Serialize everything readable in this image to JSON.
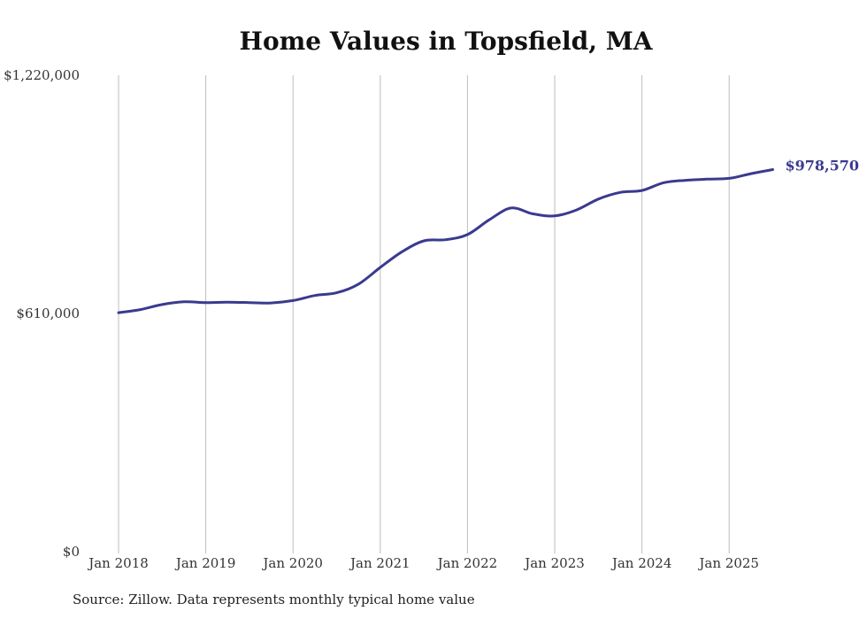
{
  "chart_data": {
    "type": "line",
    "title": "Home Values in Topsfield, MA",
    "source": "Source: Zillow. Data represents monthly typical home value",
    "end_label": "$978,570",
    "color": "#3a3a8f",
    "grid": true,
    "ylim": [
      0,
      1220000
    ],
    "y_ticks": [
      {
        "value": 0,
        "label": "$0"
      },
      {
        "value": 610000,
        "label": "$610,000"
      },
      {
        "value": 1220000,
        "label": "$1,220,000"
      }
    ],
    "x_ticks": [
      {
        "value": "2018-01",
        "label": "Jan 2018"
      },
      {
        "value": "2019-01",
        "label": "Jan 2019"
      },
      {
        "value": "2020-01",
        "label": "Jan 2020"
      },
      {
        "value": "2021-01",
        "label": "Jan 2021"
      },
      {
        "value": "2022-01",
        "label": "Jan 2022"
      },
      {
        "value": "2023-01",
        "label": "Jan 2023"
      },
      {
        "value": "2024-01",
        "label": "Jan 2024"
      },
      {
        "value": "2025-01",
        "label": "Jan 2025"
      }
    ],
    "series": [
      {
        "values": [
          [
            "2018-01",
            612000
          ],
          [
            "2018-04",
            620000
          ],
          [
            "2018-07",
            633000
          ],
          [
            "2018-10",
            640000
          ],
          [
            "2019-01",
            638000
          ],
          [
            "2019-04",
            639000
          ],
          [
            "2019-07",
            638000
          ],
          [
            "2019-10",
            637000
          ],
          [
            "2020-01",
            643000
          ],
          [
            "2020-04",
            656000
          ],
          [
            "2020-07",
            663000
          ],
          [
            "2020-10",
            685000
          ],
          [
            "2021-01",
            728000
          ],
          [
            "2021-04",
            768000
          ],
          [
            "2021-07",
            796000
          ],
          [
            "2021-10",
            799000
          ],
          [
            "2022-01",
            812000
          ],
          [
            "2022-04",
            850000
          ],
          [
            "2022-07",
            880000
          ],
          [
            "2022-10",
            865000
          ],
          [
            "2023-01",
            860000
          ],
          [
            "2023-04",
            875000
          ],
          [
            "2023-07",
            903000
          ],
          [
            "2023-10",
            920000
          ],
          [
            "2024-01",
            925000
          ],
          [
            "2024-04",
            945000
          ],
          [
            "2024-07",
            951000
          ],
          [
            "2024-10",
            954000
          ],
          [
            "2025-01",
            956000
          ],
          [
            "2025-04",
            968000
          ],
          [
            "2025-07",
            978570
          ]
        ]
      }
    ]
  }
}
